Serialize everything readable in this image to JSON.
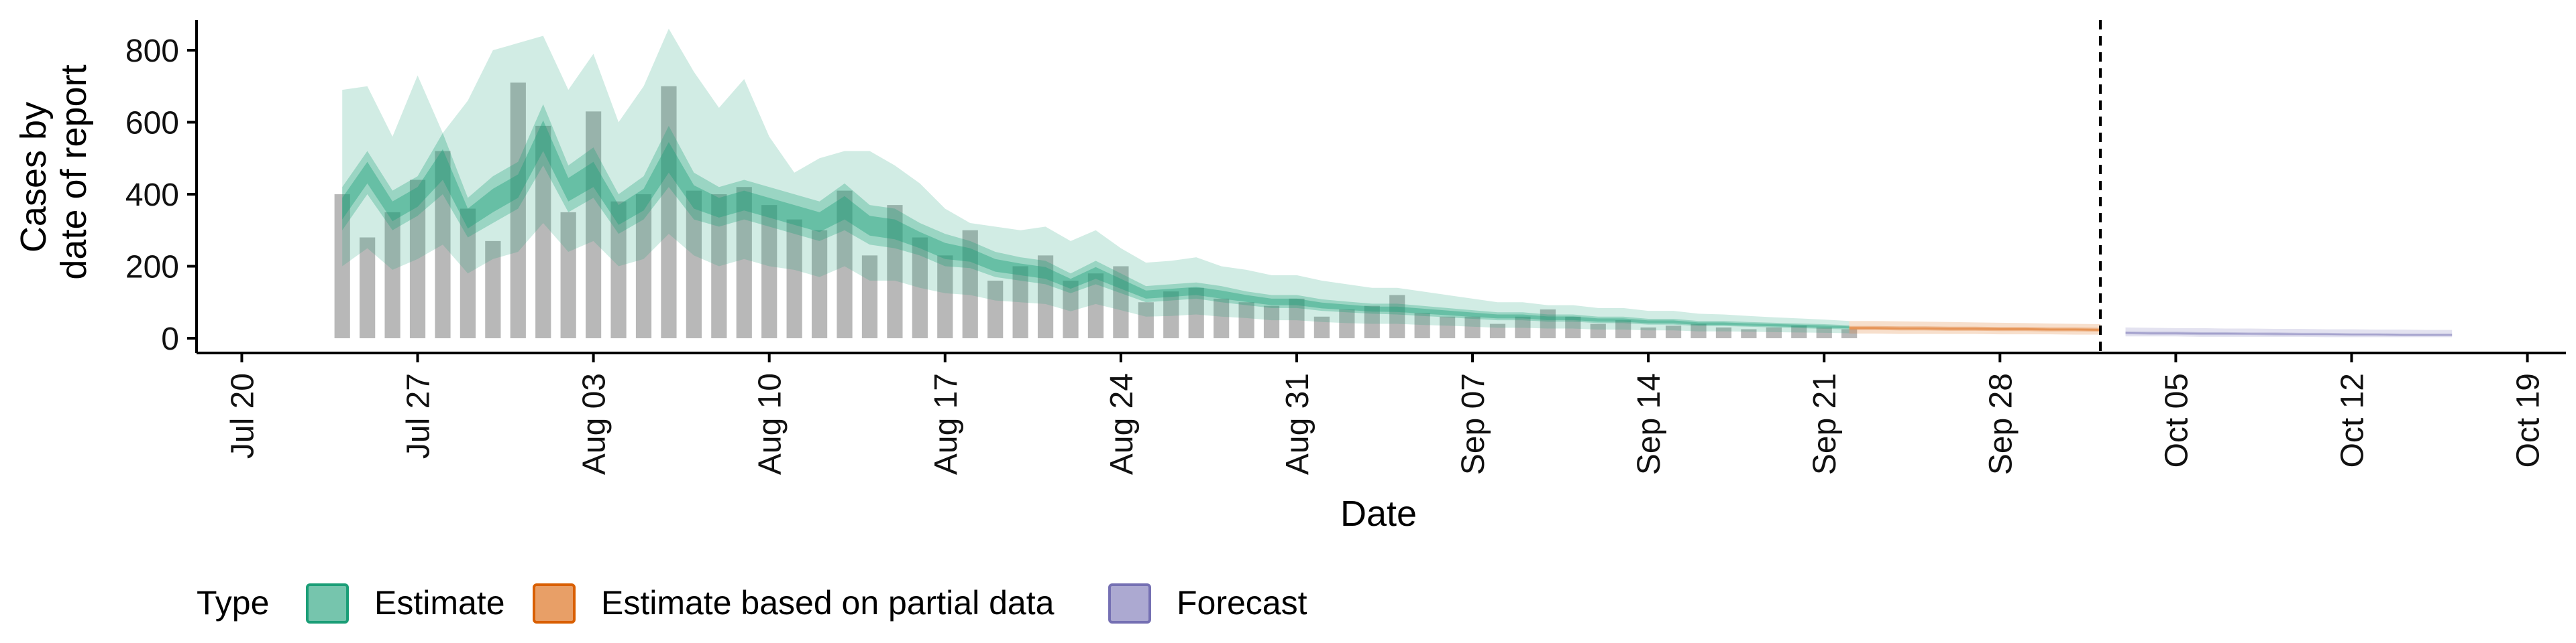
{
  "chart_data": {
    "type": "bar",
    "xlabel": "Date",
    "ylabel": [
      "Cases by",
      "date of report"
    ],
    "ylim": [
      0,
      880
    ],
    "y_ticks": [
      0,
      200,
      400,
      600,
      800
    ],
    "x_range": [
      "2020-07-19",
      "2020-10-20"
    ],
    "x_ticks": [
      {
        "date": "2020-07-20",
        "label": "Jul 20"
      },
      {
        "date": "2020-07-27",
        "label": "Jul 27"
      },
      {
        "date": "2020-08-03",
        "label": "Aug 03"
      },
      {
        "date": "2020-08-10",
        "label": "Aug 10"
      },
      {
        "date": "2020-08-17",
        "label": "Aug 17"
      },
      {
        "date": "2020-08-24",
        "label": "Aug 24"
      },
      {
        "date": "2020-08-31",
        "label": "Aug 31"
      },
      {
        "date": "2020-09-07",
        "label": "Sep 07"
      },
      {
        "date": "2020-09-14",
        "label": "Sep 14"
      },
      {
        "date": "2020-09-21",
        "label": "Sep 21"
      },
      {
        "date": "2020-09-28",
        "label": "Sep 28"
      },
      {
        "date": "2020-10-05",
        "label": "Oct 05"
      },
      {
        "date": "2020-10-12",
        "label": "Oct 12"
      },
      {
        "date": "2020-10-19",
        "label": "Oct 19"
      }
    ],
    "grid": false,
    "legend_position": "bottom",
    "legend_title": "Type",
    "forecast_line_date": "2020-10-02",
    "bars": {
      "start_date": "2020-07-24",
      "color": "#b8b8b8",
      "values": [
        400,
        280,
        350,
        440,
        520,
        360,
        270,
        710,
        590,
        350,
        630,
        380,
        400,
        700,
        410,
        400,
        420,
        370,
        330,
        300,
        410,
        230,
        370,
        280,
        230,
        300,
        160,
        200,
        230,
        160,
        180,
        200,
        100,
        130,
        140,
        110,
        100,
        90,
        110,
        60,
        80,
        90,
        120,
        70,
        60,
        60,
        40,
        60,
        80,
        60,
        40,
        50,
        30,
        35,
        40,
        30,
        25,
        30,
        35,
        30,
        25
      ]
    },
    "series": [
      {
        "name": "Estimate",
        "color": "#1b9e77",
        "start_date": "2020-07-24",
        "median": [
          360,
          460,
          350,
          390,
          480,
          330,
          380,
          420,
          560,
          410,
          450,
          340,
          380,
          500,
          390,
          360,
          380,
          360,
          340,
          320,
          360,
          310,
          300,
          270,
          240,
          230,
          200,
          190,
          180,
          150,
          180,
          150,
          120,
          125,
          130,
          120,
          110,
          100,
          100,
          90,
          85,
          80,
          80,
          75,
          70,
          65,
          60,
          60,
          55,
          55,
          50,
          50,
          45,
          45,
          40,
          40,
          38,
          36,
          34,
          32,
          30
        ],
        "lower_50": [
          300,
          400,
          300,
          340,
          400,
          280,
          320,
          360,
          480,
          350,
          390,
          290,
          330,
          420,
          330,
          310,
          330,
          310,
          290,
          270,
          300,
          260,
          250,
          230,
          200,
          195,
          170,
          160,
          150,
          125,
          150,
          125,
          100,
          105,
          110,
          100,
          92,
          84,
          84,
          76,
          72,
          68,
          66,
          62,
          58,
          54,
          50,
          50,
          46,
          46,
          42,
          42,
          38,
          38,
          34,
          34,
          32,
          30,
          28,
          26,
          25
        ],
        "upper_50": [
          420,
          520,
          410,
          450,
          570,
          390,
          450,
          490,
          650,
          480,
          530,
          400,
          450,
          590,
          460,
          420,
          440,
          420,
          400,
          380,
          430,
          370,
          360,
          320,
          290,
          270,
          240,
          225,
          215,
          180,
          215,
          180,
          145,
          150,
          155,
          145,
          130,
          120,
          120,
          108,
          102,
          96,
          96,
          90,
          84,
          78,
          72,
          72,
          66,
          66,
          60,
          60,
          54,
          54,
          48,
          48,
          45,
          43,
          41,
          39,
          36
        ],
        "lower_90": [
          200,
          250,
          190,
          220,
          260,
          180,
          220,
          240,
          320,
          240,
          270,
          200,
          220,
          290,
          230,
          200,
          220,
          200,
          190,
          170,
          200,
          160,
          160,
          140,
          125,
          120,
          105,
          100,
          95,
          75,
          95,
          78,
          60,
          62,
          66,
          60,
          56,
          50,
          50,
          45,
          42,
          40,
          40,
          37,
          35,
          32,
          29,
          29,
          27,
          27,
          24,
          24,
          22,
          22,
          19,
          19,
          18,
          17,
          16,
          15,
          14
        ],
        "upper_90": [
          690,
          700,
          560,
          730,
          570,
          660,
          800,
          820,
          840,
          690,
          790,
          600,
          700,
          860,
          740,
          640,
          720,
          560,
          460,
          500,
          520,
          520,
          480,
          430,
          360,
          320,
          310,
          300,
          310,
          270,
          300,
          250,
          210,
          215,
          225,
          200,
          190,
          175,
          175,
          160,
          150,
          140,
          140,
          130,
          120,
          110,
          100,
          100,
          92,
          92,
          84,
          84,
          76,
          76,
          68,
          66,
          62,
          58,
          55,
          52,
          48
        ]
      },
      {
        "name": "Estimate based on partial data",
        "color": "#d95f02",
        "start_date": "2020-09-22",
        "median": [
          28,
          28,
          27,
          27,
          26,
          26,
          25,
          25,
          24,
          24,
          23
        ],
        "lower_50": [
          23,
          23,
          22,
          22,
          21,
          21,
          20,
          20,
          19,
          19,
          18
        ],
        "upper_50": [
          34,
          34,
          33,
          33,
          32,
          32,
          31,
          31,
          30,
          30,
          29
        ],
        "lower_90": [
          13,
          13,
          12,
          12,
          12,
          12,
          11,
          11,
          11,
          10,
          10
        ],
        "upper_90": [
          48,
          48,
          47,
          46,
          45,
          44,
          43,
          42,
          41,
          40,
          39
        ]
      },
      {
        "name": "Forecast",
        "color": "#7570b3",
        "start_date": "2020-10-03",
        "median": [
          15,
          14,
          14,
          13,
          13,
          12,
          12,
          11,
          11,
          10,
          10,
          9,
          9,
          9
        ],
        "lower_50": [
          11,
          10,
          10,
          9,
          9,
          9,
          8,
          8,
          8,
          7,
          7,
          6,
          6,
          6
        ],
        "upper_50": [
          19,
          18,
          18,
          17,
          17,
          16,
          16,
          15,
          15,
          14,
          14,
          13,
          13,
          13
        ],
        "lower_90": [
          5,
          5,
          5,
          4,
          4,
          4,
          4,
          4,
          3,
          3,
          3,
          3,
          3,
          3
        ],
        "upper_90": [
          30,
          29,
          28,
          28,
          27,
          27,
          26,
          26,
          25,
          25,
          24,
          24,
          23,
          23
        ]
      }
    ]
  }
}
